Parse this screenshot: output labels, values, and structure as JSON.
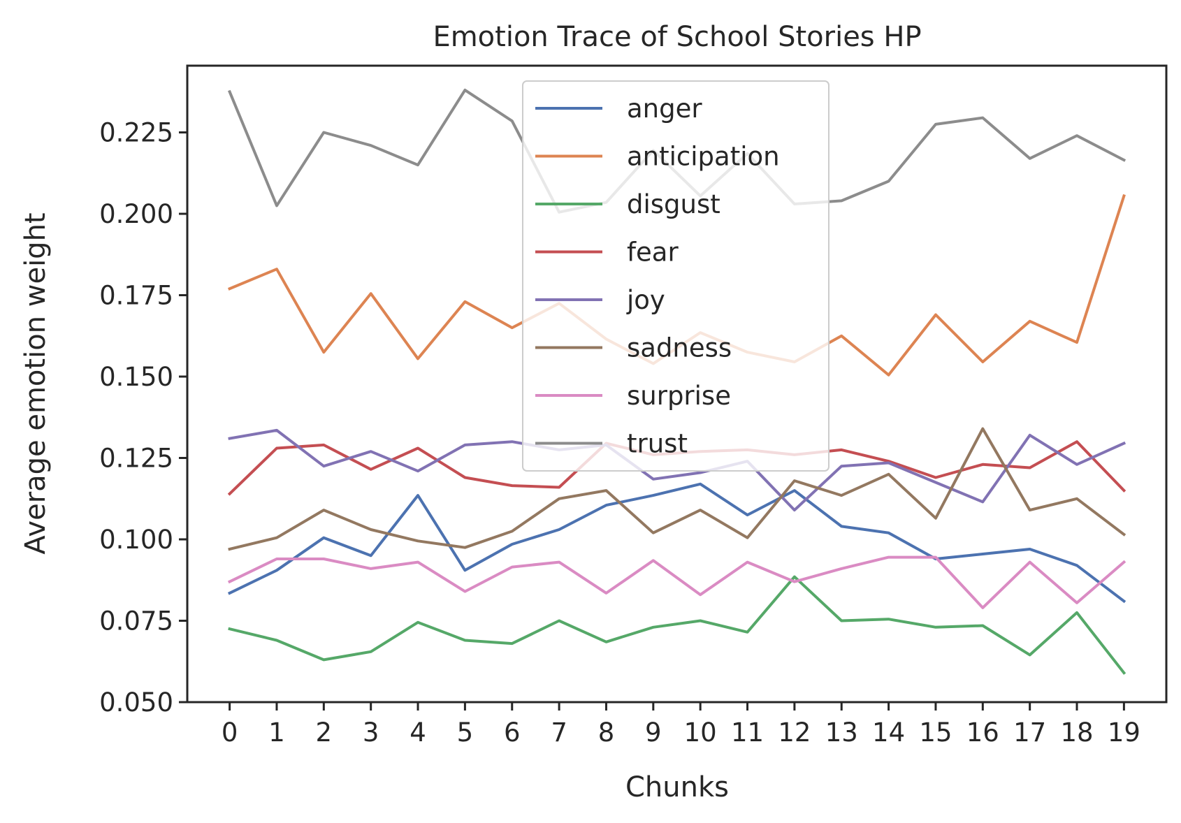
{
  "chart_data": {
    "type": "line",
    "title": "Emotion Trace of School Stories HP",
    "xlabel": "Chunks",
    "ylabel": "Average emotion weight",
    "x": [
      0,
      1,
      2,
      3,
      4,
      5,
      6,
      7,
      8,
      9,
      10,
      11,
      12,
      13,
      14,
      15,
      16,
      17,
      18,
      19
    ],
    "xlim": [
      -0.9,
      19.9
    ],
    "ylim": [
      0.05,
      0.2455
    ],
    "yticks": [
      0.05,
      0.075,
      0.1,
      0.125,
      0.15,
      0.175,
      0.2,
      0.225
    ],
    "ytick_labels": [
      "0.050",
      "0.075",
      "0.100",
      "0.125",
      "0.150",
      "0.175",
      "0.200",
      "0.225"
    ],
    "grid": false,
    "legend_position": "upper-center",
    "series": [
      {
        "name": "anger",
        "color": "#4c72b0",
        "values": [
          0.0835,
          0.0905,
          0.1005,
          0.095,
          0.1135,
          0.0905,
          0.0985,
          0.103,
          0.1105,
          0.1135,
          0.117,
          0.1075,
          0.115,
          0.104,
          0.102,
          0.094,
          0.0955,
          0.097,
          0.092,
          0.081
        ]
      },
      {
        "name": "anticipation",
        "color": "#dd8452",
        "values": [
          0.177,
          0.183,
          0.1575,
          0.1755,
          0.1555,
          0.173,
          0.165,
          0.1725,
          0.1615,
          0.154,
          0.1635,
          0.1575,
          0.1545,
          0.1625,
          0.1505,
          0.169,
          0.1545,
          0.167,
          0.1605,
          0.2055
        ]
      },
      {
        "name": "disgust",
        "color": "#55a868",
        "values": [
          0.0725,
          0.069,
          0.063,
          0.0655,
          0.0745,
          0.069,
          0.068,
          0.075,
          0.0685,
          0.073,
          0.075,
          0.0715,
          0.0885,
          0.075,
          0.0755,
          0.073,
          0.0735,
          0.0645,
          0.0775,
          0.059
        ]
      },
      {
        "name": "fear",
        "color": "#c44e52",
        "values": [
          0.114,
          0.128,
          0.129,
          0.1215,
          0.128,
          0.119,
          0.1165,
          0.116,
          0.1295,
          0.126,
          0.127,
          0.1275,
          0.126,
          0.1275,
          0.124,
          0.119,
          0.123,
          0.122,
          0.13,
          0.115
        ]
      },
      {
        "name": "joy",
        "color": "#8172b3",
        "values": [
          0.131,
          0.1335,
          0.1225,
          0.127,
          0.121,
          0.129,
          0.13,
          0.1275,
          0.129,
          0.1185,
          0.1205,
          0.124,
          0.109,
          0.1225,
          0.1235,
          0.1175,
          0.1115,
          0.132,
          0.123,
          0.1295
        ]
      },
      {
        "name": "sadness",
        "color": "#937860",
        "values": [
          0.097,
          0.1005,
          0.109,
          0.103,
          0.0995,
          0.0975,
          0.1025,
          0.1125,
          0.115,
          0.102,
          0.109,
          0.1005,
          0.118,
          0.1135,
          0.12,
          0.1065,
          0.134,
          0.109,
          0.1125,
          0.1015
        ]
      },
      {
        "name": "surprise",
        "color": "#da8bc3",
        "values": [
          0.087,
          0.094,
          0.094,
          0.091,
          0.093,
          0.084,
          0.0915,
          0.093,
          0.0835,
          0.0935,
          0.083,
          0.093,
          0.087,
          0.091,
          0.0945,
          0.0945,
          0.079,
          0.093,
          0.0805,
          0.093
        ]
      },
      {
        "name": "trust",
        "color": "#8c8c8c",
        "values": [
          0.2375,
          0.2025,
          0.225,
          0.221,
          0.215,
          0.238,
          0.2285,
          0.2005,
          0.2035,
          0.2195,
          0.2055,
          0.2185,
          0.203,
          0.204,
          0.21,
          0.2275,
          0.2295,
          0.217,
          0.224,
          0.2165
        ]
      }
    ]
  }
}
